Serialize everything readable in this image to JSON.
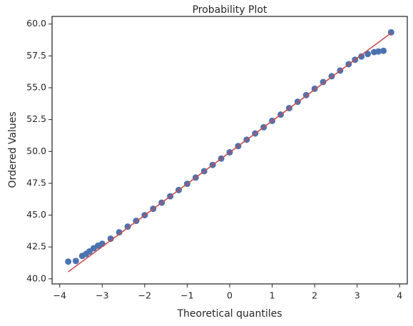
{
  "chart_data": {
    "type": "scatter",
    "title": "Probability Plot",
    "x_label": "Theoretical quantiles",
    "y_label": "Ordered Values",
    "xlim": [
      -4.18,
      4.18
    ],
    "ylim": [
      39.6,
      60.6
    ],
    "xticks": [
      {
        "value": -4,
        "label": "−4"
      },
      {
        "value": -3,
        "label": "−3"
      },
      {
        "value": -2,
        "label": "−2"
      },
      {
        "value": -1,
        "label": "−1"
      },
      0,
      1,
      2,
      3,
      4
    ],
    "yticks": [
      {
        "value": 40,
        "label": "40.0"
      },
      42.5,
      {
        "value": 45,
        "label": "45.0"
      },
      47.5,
      {
        "value": 50,
        "label": "50.0"
      },
      52.5,
      {
        "value": 55,
        "label": "55.0"
      },
      57.5,
      {
        "value": 60,
        "label": "60.0"
      }
    ],
    "grid": false,
    "series": [
      {
        "type": "scatter",
        "color": "#4c72b0",
        "x": [
          -3.8,
          -3.62,
          -3.47,
          -3.38,
          -3.3,
          -3.2,
          -3.1,
          -3.0,
          -2.8,
          -2.6,
          -2.4,
          -2.2,
          -2.0,
          -1.8,
          -1.6,
          -1.4,
          -1.2,
          -1.0,
          -0.8,
          -0.6,
          -0.4,
          -0.2,
          0,
          0.2,
          0.4,
          0.6,
          0.8,
          1.0,
          1.2,
          1.4,
          1.6,
          1.8,
          2.0,
          2.2,
          2.4,
          2.6,
          2.8,
          2.95,
          3.1,
          3.25,
          3.4,
          3.5,
          3.62,
          3.8
        ],
        "values": [
          41.35,
          41.4,
          41.8,
          41.95,
          42.15,
          42.4,
          42.6,
          42.75,
          43.15,
          43.65,
          44.1,
          44.55,
          45.0,
          45.5,
          45.98,
          46.48,
          46.97,
          47.46,
          47.95,
          48.45,
          48.94,
          49.44,
          49.93,
          50.42,
          50.92,
          51.41,
          51.9,
          52.4,
          52.89,
          53.4,
          53.9,
          54.42,
          54.92,
          55.45,
          55.9,
          56.35,
          56.85,
          57.2,
          57.45,
          57.65,
          57.8,
          57.85,
          57.9,
          59.35
        ]
      },
      {
        "type": "line",
        "color": "#c44e52",
        "x": [
          -3.8,
          3.8
        ],
        "values": [
          40.55,
          59.3
        ]
      }
    ]
  }
}
